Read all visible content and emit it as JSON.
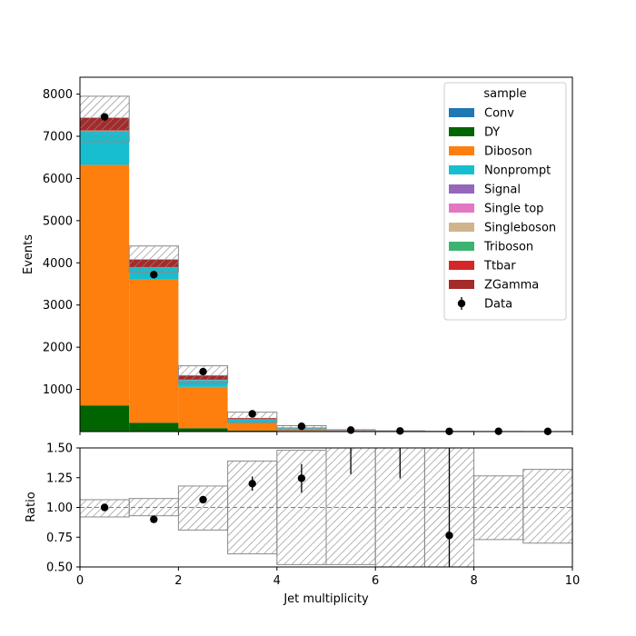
{
  "chart_data": {
    "type": "bar",
    "stacked": true,
    "bin_edges": [
      0,
      1,
      2,
      3,
      4,
      5,
      6,
      7,
      8,
      9,
      10
    ],
    "top_panel": {
      "ylabel": "Events",
      "ylim": [
        0,
        8400
      ],
      "yticks": [
        1000,
        2000,
        3000,
        4000,
        5000,
        6000,
        7000,
        8000
      ],
      "legend_title": "sample",
      "legend_position": "top-right",
      "series": [
        {
          "name": "Conv",
          "color": "#1f77b4",
          "values": [
            0,
            0,
            0,
            0,
            0,
            0,
            0,
            0,
            0,
            0
          ]
        },
        {
          "name": "DY",
          "color": "#006400",
          "values": [
            620,
            210,
            80,
            25,
            8,
            2,
            0,
            0,
            0,
            0
          ]
        },
        {
          "name": "Diboson",
          "color": "#ff7f0e",
          "values": [
            5700,
            3390,
            980,
            185,
            50,
            14,
            4,
            1,
            0,
            0
          ]
        },
        {
          "name": "Nonprompt",
          "color": "#17becf",
          "values": [
            800,
            280,
            160,
            70,
            22,
            8,
            2,
            1,
            0,
            0
          ]
        },
        {
          "name": "Signal",
          "color": "#9467bd",
          "values": [
            0,
            0,
            0,
            0,
            0,
            0,
            0,
            0,
            0,
            0
          ]
        },
        {
          "name": "Single top",
          "color": "#e377c2",
          "values": [
            10,
            6,
            5,
            3,
            1,
            0,
            0,
            0,
            0,
            0
          ]
        },
        {
          "name": "Singleboson",
          "color": "#d2b48c",
          "values": [
            0,
            0,
            0,
            0,
            0,
            0,
            0,
            0,
            0,
            0
          ]
        },
        {
          "name": "Triboson",
          "color": "#3cb371",
          "values": [
            5,
            4,
            3,
            2,
            1,
            0,
            0,
            0,
            0,
            0
          ]
        },
        {
          "name": "Ttbar",
          "color": "#d62728",
          "values": [
            15,
            10,
            12,
            10,
            5,
            2,
            1,
            0,
            0,
            0
          ]
        },
        {
          "name": "ZGamma",
          "color": "#a52a2a",
          "values": [
            290,
            180,
            90,
            25,
            8,
            3,
            1,
            0,
            0,
            0
          ]
        }
      ],
      "uncertainty_band": {
        "up": [
          7950,
          4400,
          1560,
          460,
          140,
          45,
          18,
          8,
          4,
          2
        ],
        "down": [
          6870,
          3780,
          1150,
          210,
          36,
          10,
          3,
          1,
          0,
          0
        ]
      },
      "data": {
        "name": "Data",
        "x": [
          0.5,
          1.5,
          2.5,
          3.5,
          4.5,
          5.5,
          6.5,
          7.5,
          8.5,
          9.5
        ],
        "y": [
          7460,
          3720,
          1420,
          420,
          125,
          35,
          15,
          5,
          7,
          4
        ]
      }
    },
    "bottom_panel": {
      "ylabel": "Ratio",
      "xlabel": "Jet multiplicity",
      "ylim": [
        0.5,
        1.5
      ],
      "yticks": [
        0.5,
        0.75,
        1.0,
        1.25,
        1.5
      ],
      "ytick_labels": [
        "0.50",
        "0.75",
        "1.00",
        "1.25",
        "1.50"
      ],
      "xlim": [
        0,
        10
      ],
      "xticks": [
        0,
        2,
        4,
        6,
        8,
        10
      ],
      "reference_line": 1.0,
      "band": {
        "up": [
          1.065,
          1.075,
          1.18,
          1.39,
          1.48,
          1.5,
          1.5,
          1.5,
          1.265,
          1.32
        ],
        "down": [
          0.92,
          0.93,
          0.81,
          0.61,
          0.52,
          0.52,
          0.5,
          0.5,
          0.73,
          0.7
        ]
      },
      "ratio_points": {
        "x": [
          0.5,
          1.5,
          2.5,
          3.5,
          4.5,
          7.5
        ],
        "y": [
          1.0,
          0.9,
          1.065,
          1.2,
          1.245,
          0.765
        ],
        "yerr_low": [
          0.013,
          0.015,
          0.03,
          0.06,
          0.12,
          0.3
        ],
        "yerr_high": [
          0.013,
          0.015,
          0.03,
          0.06,
          0.12,
          0.8
        ]
      },
      "offscale_error_bars": [
        {
          "x": 5.5,
          "low": 1.28
        },
        {
          "x": 6.5,
          "low": 1.245
        }
      ]
    }
  }
}
